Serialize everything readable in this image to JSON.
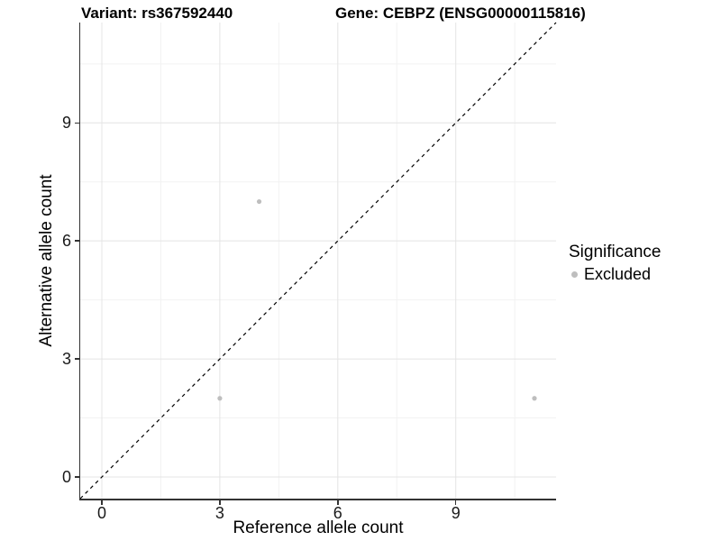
{
  "titles": {
    "variant_title": "Variant: rs367592440",
    "gene_title": "Gene: CEBPZ (ENSG00000115816)"
  },
  "legend": {
    "title": "Significance",
    "items": [
      {
        "label": "Excluded",
        "color": "#bebebe"
      }
    ]
  },
  "chart_data": {
    "type": "scatter",
    "title": "Variant: rs367592440",
    "subtitle": "Gene: CEBPZ (ENSG00000115816)",
    "xlabel": "Reference allele count",
    "ylabel": "Alternative allele count",
    "xlim": [
      -0.55,
      11.55
    ],
    "ylim": [
      -0.55,
      11.55
    ],
    "x_ticks": [
      0,
      3,
      6,
      9
    ],
    "y_ticks": [
      0,
      3,
      6,
      9
    ],
    "minor_gridlines_x": [
      1.5,
      4.5,
      7.5,
      10.5
    ],
    "minor_gridlines_y": [
      1.5,
      4.5,
      7.5,
      10.5
    ],
    "grid": true,
    "legend_position": "right",
    "series": [
      {
        "name": "Excluded",
        "color": "#bebebe",
        "points": [
          {
            "x": 4,
            "y": 7
          },
          {
            "x": 3,
            "y": 2
          },
          {
            "x": 11,
            "y": 2
          }
        ]
      }
    ],
    "reference_line": {
      "type": "identity",
      "from": [
        -0.55,
        -0.55
      ],
      "to": [
        11.55,
        11.55
      ],
      "style": "dashed",
      "color": "#000000"
    }
  },
  "colors": {
    "major_grid": "#e4e4e4",
    "minor_grid": "#f2f2f2",
    "axis_line": "#333333",
    "tick_text": "#1a1a1a",
    "point": "#bebebe"
  }
}
